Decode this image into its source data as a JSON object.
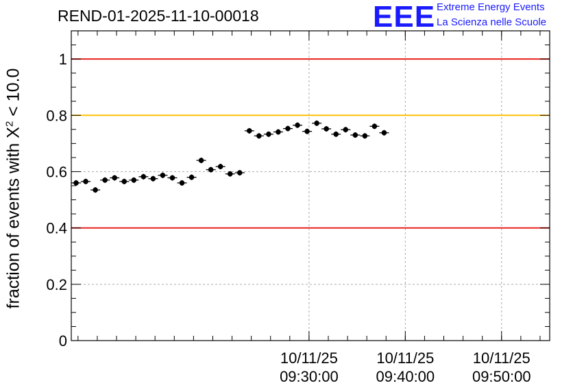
{
  "header": {
    "title": "REND-01-2025-11-10-00018",
    "logo_mark": "EEE",
    "logo_line1": "Extreme Energy Events",
    "logo_line2": "La Scienza nelle Scuole"
  },
  "colors": {
    "red_line": "#e8201c",
    "orange_line": "#ffc000",
    "logo": "#1a1aff",
    "marker": "#000000",
    "grid": "#aaaaaa"
  },
  "chart_data": {
    "type": "scatter",
    "ylabel": {
      "prefix": "fraction of events with X",
      "sup": "2",
      "suffix": " < 10.0"
    },
    "ylim": [
      0,
      1.1
    ],
    "xlim_minutes": [
      0,
      49.7
    ],
    "y_ticks": [
      "0",
      "0.2",
      "0.4",
      "0.6",
      "0.8",
      "1"
    ],
    "y_tick_values": [
      0,
      0.2,
      0.4,
      0.6,
      0.8,
      1.0
    ],
    "x_ticks": [
      {
        "minute": 24.7,
        "date": "10/11/25",
        "time": "09:30:00"
      },
      {
        "minute": 34.7,
        "date": "10/11/25",
        "time": "09:40:00"
      },
      {
        "minute": 44.7,
        "date": "10/11/25",
        "time": "09:50:00"
      }
    ],
    "x_minor_step_minutes": 2,
    "x_minor_start_minute": 0.7,
    "reference_lines": [
      {
        "y": 1.0,
        "color": "red"
      },
      {
        "y": 0.8,
        "color": "orange"
      },
      {
        "y": 0.4,
        "color": "red"
      }
    ],
    "bin_width_minutes": 1.0,
    "x_start_minute": 0.0,
    "values": [
      0.56,
      0.565,
      0.535,
      0.57,
      0.578,
      0.565,
      0.57,
      0.582,
      0.575,
      0.587,
      0.578,
      0.56,
      0.58,
      0.64,
      0.607,
      0.618,
      0.592,
      0.596,
      0.745,
      0.727,
      0.733,
      0.741,
      0.753,
      0.765,
      0.743,
      0.772,
      0.752,
      0.733,
      0.749,
      0.73,
      0.727,
      0.761,
      0.738
    ],
    "errors": [
      0.01,
      0.01,
      0.01,
      0.01,
      0.01,
      0.01,
      0.01,
      0.01,
      0.01,
      0.01,
      0.01,
      0.01,
      0.01,
      0.01,
      0.01,
      0.01,
      0.01,
      0.01,
      0.01,
      0.01,
      0.01,
      0.01,
      0.01,
      0.01,
      0.01,
      0.01,
      0.01,
      0.01,
      0.01,
      0.01,
      0.01,
      0.01,
      0.01
    ]
  }
}
